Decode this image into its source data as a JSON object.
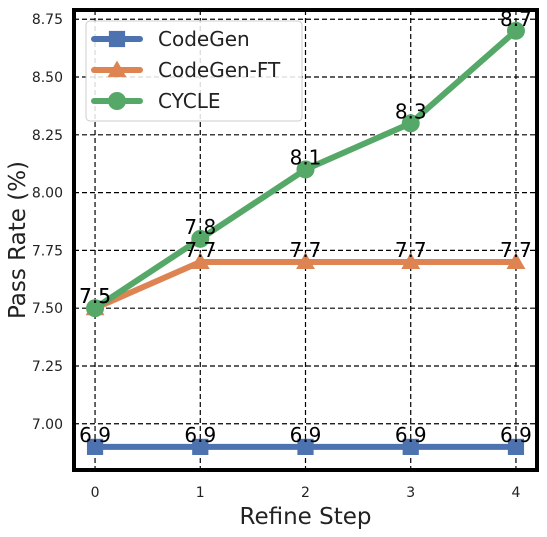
{
  "chart_data": {
    "type": "line",
    "title": "",
    "xlabel": "Refine Step",
    "ylabel": "Pass Rate (%)",
    "x": [
      0,
      1,
      2,
      3,
      4
    ],
    "xticks": [
      "0",
      "1",
      "2",
      "3",
      "4"
    ],
    "yticks": [
      "7.00",
      "7.25",
      "7.50",
      "7.75",
      "8.00",
      "8.25",
      "8.50",
      "8.75"
    ],
    "ytick_values": [
      7.0,
      7.25,
      7.5,
      7.75,
      8.0,
      8.25,
      8.5,
      8.75
    ],
    "xlim": [
      -0.2,
      4.2
    ],
    "ylim": [
      6.8,
      8.79
    ],
    "grid": true,
    "legend_position": "top-left",
    "series": [
      {
        "name": "CodeGen",
        "values": [
          6.9,
          6.9,
          6.9,
          6.9,
          6.9
        ],
        "labels": [
          "6.9",
          "6.9",
          "6.9",
          "6.9",
          "6.9"
        ],
        "color": "#4c72b0",
        "marker": "square"
      },
      {
        "name": "CodeGen-FT",
        "values": [
          7.5,
          7.7,
          7.7,
          7.7,
          7.7
        ],
        "labels": [
          "7.5",
          "7.7",
          "7.7",
          "7.7",
          "7.7"
        ],
        "color": "#dd8452",
        "marker": "triangle"
      },
      {
        "name": "CYCLE",
        "values": [
          7.5,
          7.8,
          8.1,
          8.3,
          8.7
        ],
        "labels": [
          "7.5",
          "7.8",
          "8.1",
          "8.3",
          "8.7"
        ],
        "color": "#55a868",
        "marker": "circle"
      }
    ]
  }
}
